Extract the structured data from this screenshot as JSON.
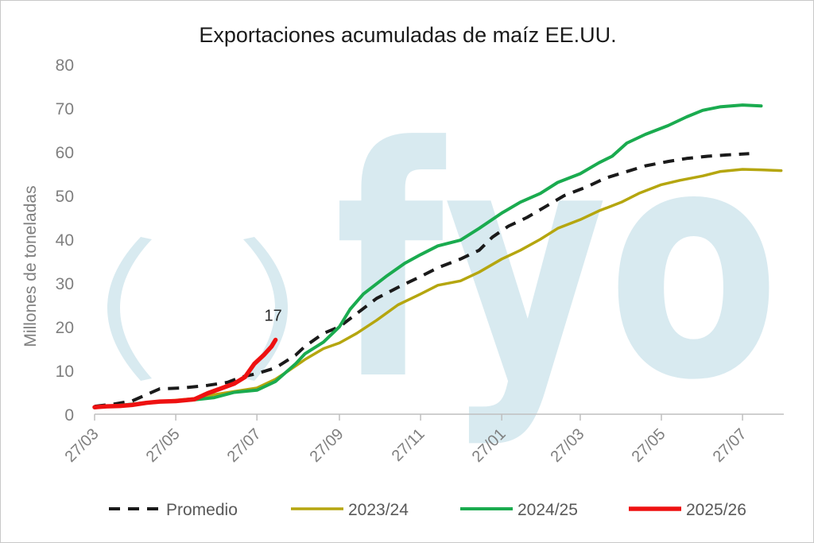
{
  "watermark": "fyo",
  "chart_data": {
    "type": "line",
    "title": "Exportaciones acumuladas de maíz EE.UU.",
    "ylabel": "Millones de toneladas",
    "xlabel": "",
    "ylim": [
      0,
      80
    ],
    "yticks": [
      0,
      10,
      20,
      30,
      40,
      50,
      60,
      70,
      80
    ],
    "xlim": [
      "2025-03-27",
      "2026-08-27"
    ],
    "xticks": [
      "2025-03-27",
      "2025-05-27",
      "2025-07-27",
      "2025-09-27",
      "2025-11-27",
      "2026-01-27",
      "2026-03-27",
      "2026-05-27",
      "2026-07-27"
    ],
    "xtick_labels": [
      "27/03",
      "27/05",
      "27/07",
      "27/09",
      "27/11",
      "27/01",
      "27/03",
      "27/05",
      "27/07"
    ],
    "legend_position": "bottom",
    "grid": false,
    "annotations": [
      {
        "text": "17",
        "series": "2025/26",
        "x": "2025-08-10",
        "y": 17
      }
    ],
    "series": [
      {
        "name": "Promedio",
        "color": "#1a1a1a",
        "style": "dashed",
        "points": [
          [
            "2025-03-27",
            1.8
          ],
          [
            "2025-04-10",
            2.3
          ],
          [
            "2025-04-24",
            3.0
          ],
          [
            "2025-05-05",
            4.5
          ],
          [
            "2025-05-15",
            5.8
          ],
          [
            "2025-06-01",
            6.0
          ],
          [
            "2025-06-20",
            6.6
          ],
          [
            "2025-07-05",
            7.3
          ],
          [
            "2025-07-15",
            8.5
          ],
          [
            "2025-07-27",
            9.3
          ],
          [
            "2025-08-10",
            10.6
          ],
          [
            "2025-08-25",
            13.5
          ],
          [
            "2025-09-01",
            15.5
          ],
          [
            "2025-09-15",
            18.5
          ],
          [
            "2025-09-27",
            20.0
          ],
          [
            "2025-10-10",
            23.0
          ],
          [
            "2025-10-25",
            26.5
          ],
          [
            "2025-11-10",
            29.0
          ],
          [
            "2025-11-27",
            31.5
          ],
          [
            "2025-12-10",
            33.5
          ],
          [
            "2025-12-27",
            35.5
          ],
          [
            "2026-01-10",
            37.5
          ],
          [
            "2026-01-20",
            40.5
          ],
          [
            "2026-02-01",
            43.0
          ],
          [
            "2026-02-15",
            45.0
          ],
          [
            "2026-03-01",
            47.5
          ],
          [
            "2026-03-15",
            50.0
          ],
          [
            "2026-04-01",
            52.0
          ],
          [
            "2026-04-15",
            54.0
          ],
          [
            "2026-05-01",
            55.5
          ],
          [
            "2026-05-15",
            56.8
          ],
          [
            "2026-06-01",
            57.8
          ],
          [
            "2026-06-15",
            58.5
          ],
          [
            "2026-07-01",
            59.0
          ],
          [
            "2026-07-15",
            59.3
          ],
          [
            "2026-08-01",
            59.6
          ]
        ]
      },
      {
        "name": "2023/24",
        "color": "#b5a60f",
        "style": "solid",
        "points": [
          [
            "2025-03-27",
            1.5
          ],
          [
            "2025-04-10",
            1.8
          ],
          [
            "2025-04-24",
            2.2
          ],
          [
            "2025-05-10",
            2.8
          ],
          [
            "2025-05-27",
            3.2
          ],
          [
            "2025-06-10",
            3.6
          ],
          [
            "2025-06-25",
            4.5
          ],
          [
            "2025-07-10",
            5.2
          ],
          [
            "2025-07-27",
            6.0
          ],
          [
            "2025-08-10",
            8.0
          ],
          [
            "2025-08-20",
            10.0
          ],
          [
            "2025-09-01",
            12.5
          ],
          [
            "2025-09-15",
            15.0
          ],
          [
            "2025-09-27",
            16.3
          ],
          [
            "2025-10-10",
            18.5
          ],
          [
            "2025-10-25",
            21.5
          ],
          [
            "2025-11-10",
            25.0
          ],
          [
            "2025-11-27",
            27.5
          ],
          [
            "2025-12-10",
            29.5
          ],
          [
            "2025-12-27",
            30.5
          ],
          [
            "2026-01-10",
            32.5
          ],
          [
            "2026-01-27",
            35.5
          ],
          [
            "2026-02-10",
            37.5
          ],
          [
            "2026-02-25",
            40.0
          ],
          [
            "2026-03-10",
            42.5
          ],
          [
            "2026-03-27",
            44.5
          ],
          [
            "2026-04-10",
            46.5
          ],
          [
            "2026-04-27",
            48.5
          ],
          [
            "2026-05-10",
            50.5
          ],
          [
            "2026-05-27",
            52.5
          ],
          [
            "2026-06-10",
            53.5
          ],
          [
            "2026-06-27",
            54.5
          ],
          [
            "2026-07-10",
            55.5
          ],
          [
            "2026-07-27",
            56.0
          ],
          [
            "2026-08-10",
            55.9
          ],
          [
            "2026-08-25",
            55.7
          ]
        ]
      },
      {
        "name": "2024/25",
        "color": "#1aab4f",
        "style": "solid",
        "points": [
          [
            "2025-03-27",
            1.5
          ],
          [
            "2025-04-10",
            1.9
          ],
          [
            "2025-04-24",
            2.3
          ],
          [
            "2025-05-10",
            2.8
          ],
          [
            "2025-05-27",
            3.0
          ],
          [
            "2025-06-10",
            3.3
          ],
          [
            "2025-06-25",
            3.8
          ],
          [
            "2025-07-10",
            5.0
          ],
          [
            "2025-07-27",
            5.5
          ],
          [
            "2025-08-10",
            7.5
          ],
          [
            "2025-08-25",
            11.5
          ],
          [
            "2025-09-01",
            13.8
          ],
          [
            "2025-09-15",
            16.5
          ],
          [
            "2025-09-27",
            20.0
          ],
          [
            "2025-10-05",
            24.0
          ],
          [
            "2025-10-15",
            27.5
          ],
          [
            "2025-11-01",
            31.5
          ],
          [
            "2025-11-15",
            34.5
          ],
          [
            "2025-11-27",
            36.5
          ],
          [
            "2025-12-10",
            38.5
          ],
          [
            "2025-12-27",
            39.8
          ],
          [
            "2026-01-10",
            42.5
          ],
          [
            "2026-01-27",
            46.0
          ],
          [
            "2026-02-10",
            48.5
          ],
          [
            "2026-02-25",
            50.5
          ],
          [
            "2026-03-10",
            53.0
          ],
          [
            "2026-03-27",
            55.0
          ],
          [
            "2026-04-10",
            57.5
          ],
          [
            "2026-04-20",
            59.0
          ],
          [
            "2026-05-01",
            62.0
          ],
          [
            "2026-05-15",
            64.0
          ],
          [
            "2026-06-01",
            66.0
          ],
          [
            "2026-06-15",
            68.0
          ],
          [
            "2026-06-27",
            69.5
          ],
          [
            "2026-07-10",
            70.3
          ],
          [
            "2026-07-27",
            70.7
          ],
          [
            "2026-08-10",
            70.5
          ]
        ]
      },
      {
        "name": "2025/26",
        "color": "#ee1111",
        "style": "solid",
        "points": [
          [
            "2025-03-27",
            1.6
          ],
          [
            "2025-04-05",
            1.8
          ],
          [
            "2025-04-15",
            1.9
          ],
          [
            "2025-04-24",
            2.1
          ],
          [
            "2025-05-05",
            2.6
          ],
          [
            "2025-05-15",
            2.9
          ],
          [
            "2025-05-27",
            3.0
          ],
          [
            "2025-06-10",
            3.4
          ],
          [
            "2025-06-20",
            4.8
          ],
          [
            "2025-07-01",
            6.0
          ],
          [
            "2025-07-10",
            7.0
          ],
          [
            "2025-07-18",
            8.5
          ],
          [
            "2025-07-25",
            11.5
          ],
          [
            "2025-08-01",
            13.5
          ],
          [
            "2025-08-07",
            15.5
          ],
          [
            "2025-08-10",
            17.0
          ]
        ]
      }
    ]
  }
}
